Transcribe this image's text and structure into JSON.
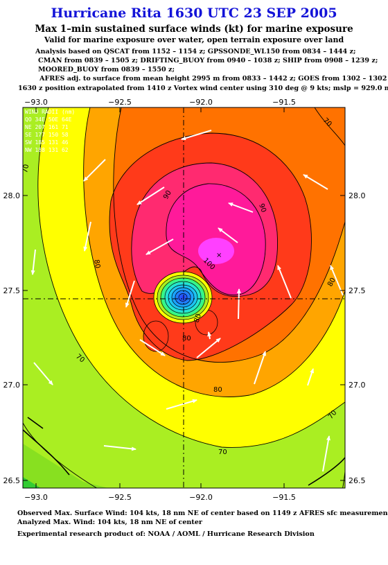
{
  "title": "Hurricane Rita 1630 UTC 23 SEP 2005",
  "subtitle": "Max 1–min sustained surface winds (kt) for marine exposure",
  "subtitle2": "Valid for marine exposure over water, open terrain exposure over land",
  "analysis": [
    "Analysis based on  QSCAT from 1152 – 1154 z;  GPSSONDE_WL150 from 0834 – 1444 z;",
    "CMAN from 0839 – 1505 z;  DRIFTING_BUOY from 0940 – 1038 z;  SHIP from 0908 – 1239 z;",
    "MOORED_BUOY from 0839 – 1550 z;",
    "AFRES adj. to surface from mean height 2995 m from 0833 – 1442 z;  GOES from 1302 – 1302 z;",
    "1630 z position extrapolated from 1410 z Vortex wind center using 310 deg @ 9 kts; mslp = 929.0 mb"
  ],
  "footer": [
    "Observed Max. Surface Wind: 104 kts, 18 nm NE of center based on 1149 z AFRES sfc measurement",
    "Analyzed Max. Wind: 104 kts, 18 nm NE of center",
    "Experimental research product of:  NOAA / AOML / Hurricane Research Division"
  ],
  "map": {
    "lon_ticks": [
      "−93.0",
      "−92.5",
      "−92.0",
      "−91.5"
    ],
    "lat_ticks": [
      "28.0",
      "27.5",
      "27.0",
      "26.5"
    ],
    "contour_labels": [
      "70",
      "70",
      "70",
      "70",
      "70",
      "80",
      "80",
      "80",
      "80",
      "80",
      "90",
      "90",
      "100"
    ],
    "legend": [
      "WIND  RADII (nm)",
      "QO  34E 50E 64E",
      "NE  207 161  71",
      "SE  177 150  58",
      "SW  185 131  46",
      "NW  188 131  62"
    ],
    "colors": {
      "green": "#33cc33",
      "lightgreen": "#aaee22",
      "yellow": "#ffff00",
      "orange": "#ffa500",
      "darkorange": "#ff7200",
      "red": "#ff3a1a",
      "magenta": "#ff1a9a",
      "pink": "#ff40ff"
    }
  }
}
